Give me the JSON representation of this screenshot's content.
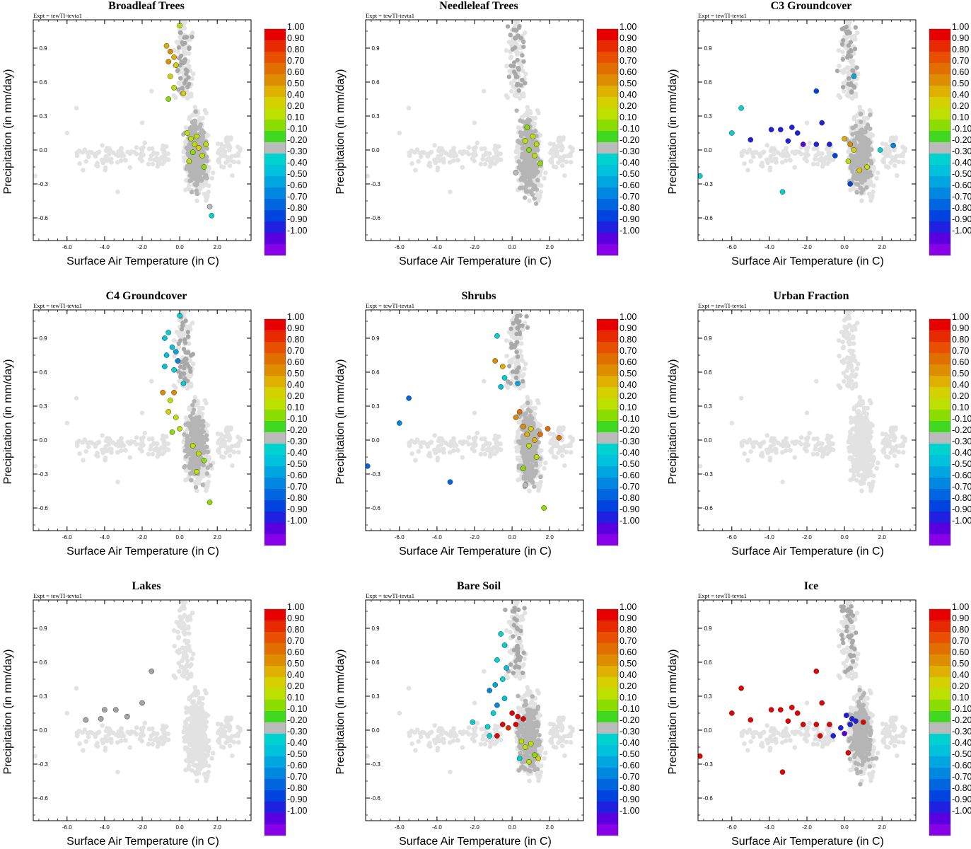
{
  "figure": {
    "expt_label": "Expt = tewTI-tevta1"
  },
  "colorbar": {
    "labels": [
      "1.00",
      "0.90",
      "0.80",
      "0.70",
      "0.60",
      "0.50",
      "0.40",
      "0.20",
      "0.10",
      "-0.10",
      "-0.20",
      "-0.30",
      "-0.40",
      "-0.50",
      "-0.60",
      "-0.70",
      "-0.80",
      "-0.90",
      "-1.00"
    ],
    "colors": [
      "#e60000",
      "#e82a00",
      "#e84f00",
      "#e06f00",
      "#de8c00",
      "#dfb000",
      "#d5d100",
      "#bde000",
      "#8bdc00",
      "#40d820",
      "#bbbbbb",
      "#00d2d0",
      "#00c2dc",
      "#00a6e0",
      "#0088e0",
      "#0066e0",
      "#0044e0",
      "#2020e0",
      "#5a00e0",
      "#8800e8"
    ]
  },
  "chart_data": [
    {
      "type": "scatter",
      "title": "Broadleaf Trees",
      "xlabel": "Surface Air Temperature (in C)",
      "ylabel": "Precipitation (in mm/day)",
      "xlim": [
        -7.8,
        3.8
      ],
      "ylim": [
        -0.8,
        1.15
      ],
      "xticks": [
        "-6.0",
        "-4.0",
        "-2.0",
        "0.0",
        "2.0"
      ],
      "yticks": [
        "0.9",
        "0.6",
        "0.3",
        "0.0",
        "-0.3",
        "-0.6"
      ],
      "highlight": "Broadleaf Trees",
      "colored_points": [
        {
          "x": -0.7,
          "y": 0.92,
          "v": 0.45
        },
        {
          "x": -0.5,
          "y": 0.87,
          "v": 0.5
        },
        {
          "x": -0.3,
          "y": 0.82,
          "v": 0.4
        },
        {
          "x": -0.6,
          "y": 0.78,
          "v": 0.55
        },
        {
          "x": -0.2,
          "y": 0.75,
          "v": 0.35
        },
        {
          "x": -0.5,
          "y": 0.65,
          "v": 0.3
        },
        {
          "x": -0.3,
          "y": 0.55,
          "v": 0.25
        },
        {
          "x": -0.6,
          "y": 0.45,
          "v": 0.15
        },
        {
          "x": 0.2,
          "y": 0.5,
          "v": 0.3
        },
        {
          "x": 0.0,
          "y": 1.1,
          "v": 0.2
        },
        {
          "x": 0.4,
          "y": 0.15,
          "v": 0.2
        },
        {
          "x": 0.6,
          "y": 0.1,
          "v": 0.25
        },
        {
          "x": 0.8,
          "y": 0.05,
          "v": 0.2
        },
        {
          "x": 1.0,
          "y": 0.02,
          "v": 0.3
        },
        {
          "x": 1.2,
          "y": -0.05,
          "v": 0.2
        },
        {
          "x": 0.7,
          "y": -0.02,
          "v": 0.15
        },
        {
          "x": 0.9,
          "y": 0.12,
          "v": 0.25
        },
        {
          "x": 1.4,
          "y": 0.05,
          "v": 0.2
        },
        {
          "x": 0.5,
          "y": -0.1,
          "v": 0.2
        },
        {
          "x": 1.3,
          "y": -0.15,
          "v": 0.15
        },
        {
          "x": 1.6,
          "y": -0.5,
          "v": -0.2
        },
        {
          "x": 1.7,
          "y": -0.58,
          "v": -0.25
        }
      ]
    },
    {
      "type": "scatter",
      "title": "Needleleaf Trees",
      "xlabel": "Surface Air Temperature (in C)",
      "ylabel": "Precipitation (in mm/day)",
      "xlim": [
        -7.8,
        3.8
      ],
      "ylim": [
        -0.8,
        1.15
      ],
      "xticks": [
        "-6.0",
        "-4.0",
        "-2.0",
        "0.0",
        "2.0"
      ],
      "yticks": [
        "0.9",
        "0.6",
        "0.3",
        "0.0",
        "-0.3",
        "-0.6"
      ],
      "highlight": "Needleleaf Trees",
      "colored_points": [
        {
          "x": 0.8,
          "y": 0.2,
          "v": 0.15
        },
        {
          "x": 1.1,
          "y": 0.12,
          "v": 0.2
        },
        {
          "x": 1.3,
          "y": 0.05,
          "v": 0.25
        },
        {
          "x": 0.9,
          "y": 0.0,
          "v": 0.15
        },
        {
          "x": 1.2,
          "y": -0.05,
          "v": 0.2
        },
        {
          "x": 1.5,
          "y": -0.12,
          "v": 0.15
        },
        {
          "x": 0.7,
          "y": 0.08,
          "v": 0.2
        },
        {
          "x": 0.2,
          "y": -0.2,
          "v": -0.2
        }
      ]
    },
    {
      "type": "scatter",
      "title": "C3 Groundcover",
      "xlabel": "Surface Air Temperature (in C)",
      "ylabel": "Precipitation (in mm/day)",
      "xlim": [
        -7.8,
        3.8
      ],
      "ylim": [
        -0.8,
        1.15
      ],
      "xticks": [
        "-6.0",
        "-4.0",
        "-2.0",
        "0.0",
        "2.0"
      ],
      "yticks": [
        "0.9",
        "0.6",
        "0.3",
        "0.0",
        "-0.3",
        "-0.6"
      ],
      "highlight": "C3 Groundcover",
      "colored_points": [
        {
          "x": -5.5,
          "y": 0.37,
          "v": -0.25
        },
        {
          "x": -6.0,
          "y": 0.15,
          "v": -0.3
        },
        {
          "x": -7.7,
          "y": -0.23,
          "v": -0.3
        },
        {
          "x": -3.3,
          "y": -0.37,
          "v": -0.3
        },
        {
          "x": -5.0,
          "y": 0.09,
          "v": -0.9
        },
        {
          "x": -3.9,
          "y": 0.18,
          "v": -0.9
        },
        {
          "x": -3.4,
          "y": 0.18,
          "v": -0.9
        },
        {
          "x": -2.8,
          "y": 0.2,
          "v": -0.9
        },
        {
          "x": -2.5,
          "y": 0.15,
          "v": -0.9
        },
        {
          "x": -3.0,
          "y": 0.08,
          "v": -0.9
        },
        {
          "x": -2.2,
          "y": 0.05,
          "v": -0.95
        },
        {
          "x": -1.5,
          "y": 0.05,
          "v": -0.9
        },
        {
          "x": -1.2,
          "y": 0.24,
          "v": -0.85
        },
        {
          "x": -1.5,
          "y": 0.52,
          "v": -0.8
        },
        {
          "x": -0.8,
          "y": 0.05,
          "v": -0.9
        },
        {
          "x": -0.5,
          "y": -0.05,
          "v": -0.8
        },
        {
          "x": 0.0,
          "y": 0.1,
          "v": 0.4
        },
        {
          "x": 0.3,
          "y": 0.05,
          "v": 0.5
        },
        {
          "x": 0.5,
          "y": 0.0,
          "v": 0.3
        },
        {
          "x": 0.2,
          "y": -0.1,
          "v": 0.2
        },
        {
          "x": 0.8,
          "y": -0.18,
          "v": 0.3
        },
        {
          "x": 1.2,
          "y": -0.15,
          "v": 0.2
        },
        {
          "x": 0.5,
          "y": 0.65,
          "v": -0.5
        },
        {
          "x": 1.9,
          "y": 0.0,
          "v": -0.3
        },
        {
          "x": 2.6,
          "y": 0.04,
          "v": -0.6
        },
        {
          "x": 0.3,
          "y": -0.3,
          "v": -0.8
        }
      ]
    },
    {
      "type": "scatter",
      "title": "C4 Groundcover",
      "xlabel": "Surface Air Temperature (in C)",
      "ylabel": "Precipitation (in mm/day)",
      "xlim": [
        -7.8,
        3.8
      ],
      "ylim": [
        -0.8,
        1.15
      ],
      "xticks": [
        "-6.0",
        "-4.0",
        "-2.0",
        "0.0",
        "2.0"
      ],
      "yticks": [
        "0.9",
        "0.6",
        "0.3",
        "0.0",
        "-0.3",
        "-0.6"
      ],
      "highlight": "C4 Groundcover",
      "colored_points": [
        {
          "x": -0.6,
          "y": 0.95,
          "v": -0.3
        },
        {
          "x": -0.8,
          "y": 0.9,
          "v": -0.35
        },
        {
          "x": -0.4,
          "y": 0.82,
          "v": -0.4
        },
        {
          "x": -0.2,
          "y": 0.78,
          "v": -0.45
        },
        {
          "x": -0.7,
          "y": 0.75,
          "v": -0.4
        },
        {
          "x": -0.1,
          "y": 0.7,
          "v": -0.55
        },
        {
          "x": -0.3,
          "y": 0.62,
          "v": -0.3
        },
        {
          "x": -0.8,
          "y": 0.65,
          "v": -0.4
        },
        {
          "x": 0.2,
          "y": 0.5,
          "v": -0.3
        },
        {
          "x": -0.9,
          "y": 0.42,
          "v": 0.55
        },
        {
          "x": -0.3,
          "y": 0.42,
          "v": 0.5
        },
        {
          "x": -0.5,
          "y": 0.35,
          "v": 0.25
        },
        {
          "x": -0.6,
          "y": 0.25,
          "v": 0.35
        },
        {
          "x": -0.2,
          "y": 0.2,
          "v": 0.2
        },
        {
          "x": 0.0,
          "y": 0.1,
          "v": 0.2
        },
        {
          "x": -0.4,
          "y": 0.07,
          "v": 0.15
        },
        {
          "x": 0.7,
          "y": -0.05,
          "v": 0.2
        },
        {
          "x": 1.0,
          "y": -0.12,
          "v": 0.25
        },
        {
          "x": 1.3,
          "y": -0.18,
          "v": 0.15
        },
        {
          "x": 0.9,
          "y": -0.28,
          "v": 0.2
        },
        {
          "x": 1.6,
          "y": -0.55,
          "v": 0.15
        },
        {
          "x": 0.0,
          "y": 1.1,
          "v": -0.3
        }
      ]
    },
    {
      "type": "scatter",
      "title": "Shrubs",
      "xlabel": "Surface Air Temperature (in C)",
      "ylabel": "Precipitation (in mm/day)",
      "xlim": [
        -7.8,
        3.8
      ],
      "ylim": [
        -0.8,
        1.15
      ],
      "xticks": [
        "-6.0",
        "-4.0",
        "-2.0",
        "0.0",
        "2.0"
      ],
      "yticks": [
        "0.9",
        "0.6",
        "0.3",
        "0.0",
        "-0.3",
        "-0.6"
      ],
      "highlight": "Shrubs",
      "colored_points": [
        {
          "x": -5.5,
          "y": 0.37,
          "v": -0.7
        },
        {
          "x": -6.0,
          "y": 0.15,
          "v": -0.6
        },
        {
          "x": -7.7,
          "y": -0.23,
          "v": -0.7
        },
        {
          "x": -3.3,
          "y": -0.37,
          "v": -0.65
        },
        {
          "x": -0.8,
          "y": 0.92,
          "v": -0.3
        },
        {
          "x": -0.9,
          "y": 0.7,
          "v": 0.5
        },
        {
          "x": -0.5,
          "y": 0.65,
          "v": 0.45
        },
        {
          "x": -0.4,
          "y": 0.55,
          "v": -0.3
        },
        {
          "x": -0.6,
          "y": 0.47,
          "v": -0.35
        },
        {
          "x": 0.3,
          "y": 0.5,
          "v": -0.5
        },
        {
          "x": 0.4,
          "y": 0.25,
          "v": 0.6
        },
        {
          "x": 0.6,
          "y": 0.12,
          "v": 0.5
        },
        {
          "x": 0.8,
          "y": 0.05,
          "v": 0.4
        },
        {
          "x": 1.0,
          "y": 0.1,
          "v": 0.3
        },
        {
          "x": 1.2,
          "y": 0.0,
          "v": 0.45
        },
        {
          "x": 1.5,
          "y": 0.05,
          "v": 0.6
        },
        {
          "x": 1.9,
          "y": 0.1,
          "v": 0.65
        },
        {
          "x": 2.5,
          "y": 0.02,
          "v": 0.6
        },
        {
          "x": 0.9,
          "y": -0.05,
          "v": 0.2
        },
        {
          "x": 1.3,
          "y": -0.15,
          "v": 0.2
        },
        {
          "x": 0.6,
          "y": -0.25,
          "v": 0.15
        },
        {
          "x": 0.7,
          "y": -0.4,
          "v": -0.2
        },
        {
          "x": 1.7,
          "y": -0.6,
          "v": 0.15
        },
        {
          "x": 0.2,
          "y": 0.2,
          "v": 0.5
        }
      ]
    },
    {
      "type": "scatter",
      "title": "Urban Fraction",
      "xlabel": "Surface Air Temperature (in C)",
      "ylabel": "Precipitation (in mm/day)",
      "xlim": [
        -7.8,
        3.8
      ],
      "ylim": [
        -0.8,
        1.15
      ],
      "xticks": [
        "-6.0",
        "-4.0",
        "-2.0",
        "0.0",
        "2.0"
      ],
      "yticks": [
        "0.9",
        "0.6",
        "0.3",
        "0.0",
        "-0.3",
        "-0.6"
      ],
      "highlight": "Urban Fraction",
      "colored_points": []
    },
    {
      "type": "scatter",
      "title": "Lakes",
      "xlabel": "Surface Air Temperature (in C)",
      "ylabel": "Precipitation (in mm/day)",
      "xlim": [
        -7.8,
        3.8
      ],
      "ylim": [
        -0.8,
        1.15
      ],
      "xticks": [
        "-6.0",
        "-4.0",
        "-2.0",
        "0.0",
        "2.0"
      ],
      "yticks": [
        "0.9",
        "0.6",
        "0.3",
        "0.0",
        "-0.3",
        "-0.6"
      ],
      "highlight": "Lakes",
      "colored_points": [
        {
          "x": -1.5,
          "y": 0.52,
          "v": 0.0
        },
        {
          "x": -4.0,
          "y": 0.18,
          "v": 0.0
        },
        {
          "x": -3.4,
          "y": 0.18,
          "v": 0.0
        },
        {
          "x": -5.0,
          "y": 0.09,
          "v": 0.0
        },
        {
          "x": -2.8,
          "y": 0.12,
          "v": 0.0
        },
        {
          "x": -2.0,
          "y": 0.24,
          "v": 0.0
        },
        {
          "x": -4.2,
          "y": 0.1,
          "v": 0.0
        }
      ]
    },
    {
      "type": "scatter",
      "title": "Bare Soil",
      "xlabel": "Surface Air Temperature (in C)",
      "ylabel": "Precipitation (in mm/day)",
      "xlim": [
        -7.8,
        3.8
      ],
      "ylim": [
        -0.8,
        1.15
      ],
      "xticks": [
        "-6.0",
        "-4.0",
        "-2.0",
        "0.0",
        "2.0"
      ],
      "yticks": [
        "0.9",
        "0.6",
        "0.3",
        "0.0",
        "-0.3",
        "-0.6"
      ],
      "highlight": "Bare Soil",
      "colored_points": [
        {
          "x": -0.6,
          "y": 0.85,
          "v": -0.25
        },
        {
          "x": -0.4,
          "y": 0.75,
          "v": -0.3
        },
        {
          "x": -0.8,
          "y": 0.62,
          "v": -0.25
        },
        {
          "x": -0.3,
          "y": 0.55,
          "v": -0.35
        },
        {
          "x": -0.5,
          "y": 0.45,
          "v": -0.3
        },
        {
          "x": -0.9,
          "y": 0.4,
          "v": -0.5
        },
        {
          "x": -1.2,
          "y": 0.35,
          "v": -0.6
        },
        {
          "x": -0.4,
          "y": 0.28,
          "v": -0.35
        },
        {
          "x": -0.8,
          "y": 0.22,
          "v": -0.55
        },
        {
          "x": -1.0,
          "y": 0.15,
          "v": -0.3
        },
        {
          "x": -2.1,
          "y": 0.07,
          "v": -0.3
        },
        {
          "x": -1.3,
          "y": 0.03,
          "v": -0.25
        },
        {
          "x": -1.2,
          "y": -0.05,
          "v": -0.3
        },
        {
          "x": 0.0,
          "y": 0.15,
          "v": 0.95
        },
        {
          "x": 0.3,
          "y": 0.12,
          "v": 0.9
        },
        {
          "x": 0.6,
          "y": 0.1,
          "v": 0.95
        },
        {
          "x": -0.5,
          "y": 0.05,
          "v": 0.9
        },
        {
          "x": -0.2,
          "y": 0.02,
          "v": 0.85
        },
        {
          "x": 0.2,
          "y": 0.05,
          "v": 0.95
        },
        {
          "x": -0.8,
          "y": -0.05,
          "v": 0.95
        },
        {
          "x": 0.5,
          "y": -0.1,
          "v": 0.2
        },
        {
          "x": 0.7,
          "y": -0.15,
          "v": 0.25
        },
        {
          "x": 1.0,
          "y": -0.12,
          "v": 0.2
        },
        {
          "x": 1.2,
          "y": -0.22,
          "v": 0.15
        },
        {
          "x": 0.9,
          "y": -0.28,
          "v": 0.2
        },
        {
          "x": 1.4,
          "y": -0.25,
          "v": 0.35
        },
        {
          "x": 0.4,
          "y": -0.25,
          "v": -0.3
        }
      ]
    },
    {
      "type": "scatter",
      "title": "Ice",
      "xlabel": "Surface Air Temperature (in C)",
      "ylabel": "Precipitation (in mm/day)",
      "xlim": [
        -7.8,
        3.8
      ],
      "ylim": [
        -0.8,
        1.15
      ],
      "xticks": [
        "-6.0",
        "-4.0",
        "-2.0",
        "0.0",
        "2.0"
      ],
      "yticks": [
        "0.9",
        "0.6",
        "0.3",
        "0.0",
        "-0.3",
        "-0.6"
      ],
      "highlight": "Ice",
      "colored_points": [
        {
          "x": -5.5,
          "y": 0.37,
          "v": 0.95
        },
        {
          "x": -6.0,
          "y": 0.15,
          "v": 0.95
        },
        {
          "x": -7.7,
          "y": -0.23,
          "v": 0.95
        },
        {
          "x": -3.3,
          "y": -0.37,
          "v": 0.95
        },
        {
          "x": -5.0,
          "y": 0.09,
          "v": 0.95
        },
        {
          "x": -3.9,
          "y": 0.18,
          "v": 0.95
        },
        {
          "x": -3.4,
          "y": 0.18,
          "v": 0.95
        },
        {
          "x": -2.8,
          "y": 0.2,
          "v": 0.95
        },
        {
          "x": -2.5,
          "y": 0.15,
          "v": 0.95
        },
        {
          "x": -3.0,
          "y": 0.08,
          "v": 0.95
        },
        {
          "x": -2.2,
          "y": 0.05,
          "v": 0.95
        },
        {
          "x": -1.5,
          "y": 0.52,
          "v": 0.95
        },
        {
          "x": -1.2,
          "y": 0.24,
          "v": 0.95
        },
        {
          "x": -1.5,
          "y": 0.05,
          "v": 0.95
        },
        {
          "x": -0.8,
          "y": 0.05,
          "v": 0.95
        },
        {
          "x": -1.3,
          "y": -0.05,
          "v": 0.95
        },
        {
          "x": 0.2,
          "y": -0.2,
          "v": 0.95
        },
        {
          "x": 1.0,
          "y": 0.07,
          "v": 0.95
        },
        {
          "x": 0.1,
          "y": 0.13,
          "v": -0.9
        },
        {
          "x": 0.4,
          "y": 0.1,
          "v": -0.9
        },
        {
          "x": 0.6,
          "y": 0.08,
          "v": -0.9
        },
        {
          "x": -0.2,
          "y": 0.02,
          "v": -0.9
        },
        {
          "x": 0.0,
          "y": -0.03,
          "v": -0.95
        },
        {
          "x": -0.6,
          "y": -0.05,
          "v": -0.9
        },
        {
          "x": 0.3,
          "y": 0.05,
          "v": -0.9
        }
      ]
    }
  ]
}
